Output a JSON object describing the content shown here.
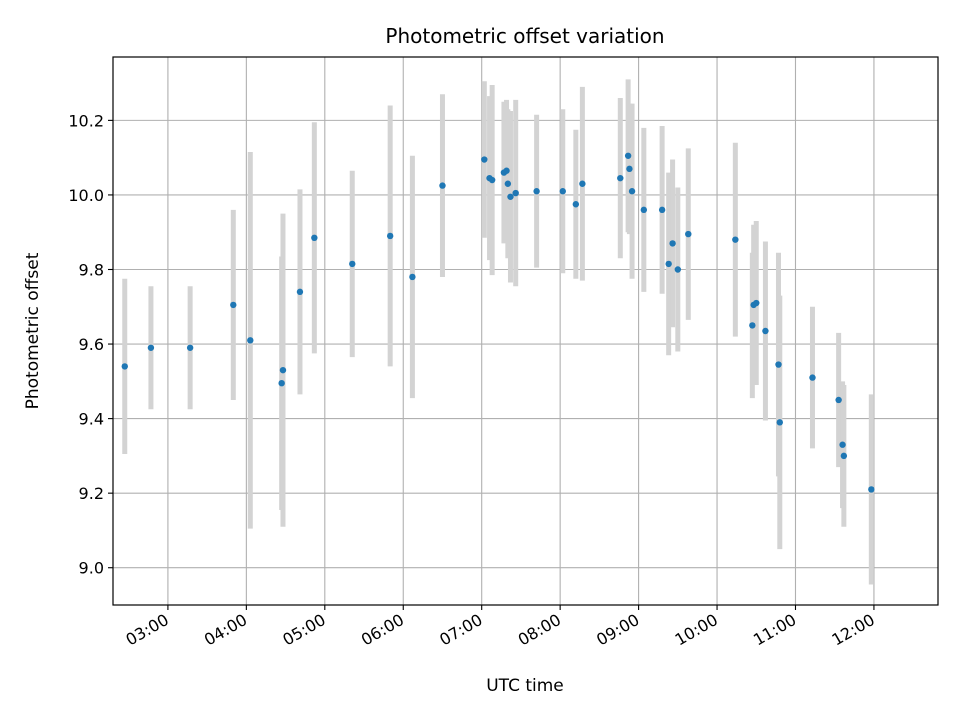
{
  "chart_data": {
    "type": "scatter",
    "title": "Photometric offset variation",
    "xlabel": "UTC time",
    "ylabel": "Photometric offset",
    "xlim": [
      "02:18",
      "12:49"
    ],
    "ylim": [
      8.9,
      10.37
    ],
    "x_ticks": [
      "03:00",
      "04:00",
      "05:00",
      "06:00",
      "07:00",
      "08:00",
      "09:00",
      "10:00",
      "11:00",
      "12:00"
    ],
    "y_ticks": [
      "9.0",
      "9.2",
      "9.4",
      "9.6",
      "9.8",
      "10.0",
      "10.2"
    ],
    "grid": true,
    "legend": "none",
    "colors": {
      "point": "#1f77b4",
      "errorbar": "#d3d3d3",
      "grid": "#b0b0b0"
    },
    "series": [
      {
        "x": [
          "02:27",
          "02:47",
          "03:17",
          "03:50",
          "04:03",
          "04:27",
          "04:28",
          "04:41",
          "04:52",
          "05:21",
          "05:50",
          "06:07",
          "06:30",
          "07:02",
          "07:06",
          "07:08",
          "07:17",
          "07:19",
          "07:20",
          "07:22",
          "07:26",
          "07:42",
          "08:02",
          "08:12",
          "08:17",
          "08:46",
          "08:52",
          "08:53",
          "08:55",
          "09:04",
          "09:18",
          "09:23",
          "09:26",
          "09:30",
          "09:38",
          "10:14",
          "10:27",
          "10:28",
          "10:30",
          "10:37",
          "10:47",
          "10:48",
          "11:13",
          "11:33",
          "11:36",
          "11:37",
          "11:58"
        ],
        "y": [
          9.54,
          9.59,
          9.59,
          9.705,
          9.61,
          9.495,
          9.53,
          9.74,
          9.885,
          9.815,
          9.89,
          9.78,
          10.025,
          10.095,
          10.045,
          10.04,
          10.06,
          10.065,
          10.03,
          9.995,
          10.005,
          10.01,
          10.01,
          9.975,
          10.03,
          10.045,
          10.105,
          10.07,
          10.01,
          9.96,
          9.96,
          9.815,
          9.87,
          9.8,
          9.895,
          9.88,
          9.65,
          9.705,
          9.71,
          9.635,
          9.545,
          9.39,
          9.51,
          9.45,
          9.33,
          9.3,
          9.21
        ],
        "yerr": [
          0.235,
          0.165,
          0.165,
          0.255,
          0.505,
          0.34,
          0.42,
          0.275,
          0.31,
          0.25,
          0.35,
          0.325,
          0.245,
          0.21,
          0.22,
          0.255,
          0.19,
          0.19,
          0.2,
          0.23,
          0.25,
          0.205,
          0.22,
          0.2,
          0.26,
          0.215,
          0.205,
          0.175,
          0.235,
          0.22,
          0.225,
          0.245,
          0.225,
          0.22,
          0.23,
          0.26,
          0.195,
          0.215,
          0.22,
          0.24,
          0.3,
          0.34,
          0.19,
          0.18,
          0.17,
          0.19,
          0.255
        ]
      }
    ]
  }
}
